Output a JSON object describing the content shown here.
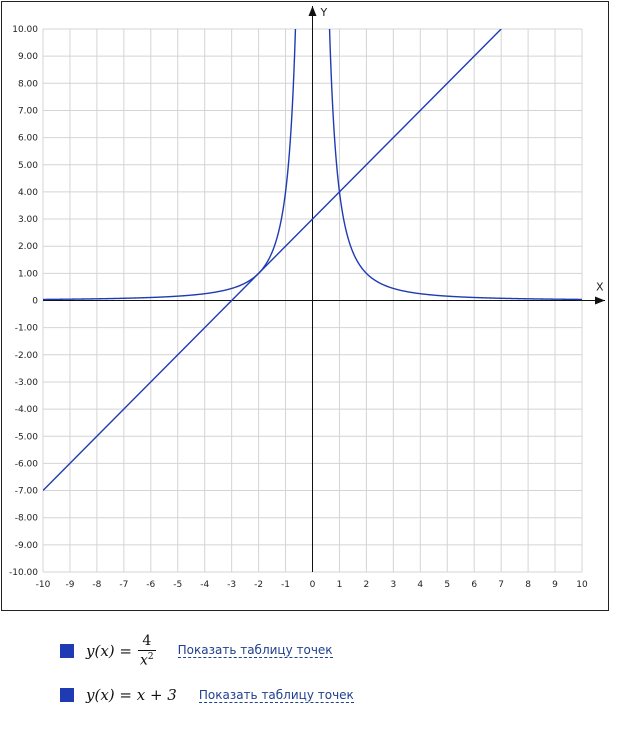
{
  "chart_data": {
    "type": "line",
    "xlabel": "X",
    "ylabel": "Y",
    "xlim": [
      -10,
      10
    ],
    "ylim": [
      -10,
      10
    ],
    "grid": true,
    "x_ticks": [
      "-10",
      "-9",
      "-8",
      "-7",
      "-6",
      "-5",
      "-4",
      "-3",
      "-2",
      "-1",
      "0",
      "1",
      "2",
      "3",
      "4",
      "5",
      "6",
      "7",
      "8",
      "9",
      "10"
    ],
    "y_ticks": [
      "10.00",
      "9.00",
      "8.00",
      "7.00",
      "6.00",
      "5.00",
      "4.00",
      "3.00",
      "2.00",
      "1.00",
      "0",
      "-1.00",
      "-2.00",
      "-3.00",
      "-4.00",
      "-5.00",
      "-6.00",
      "-7.00",
      "-8.00",
      "-9.00",
      "-10.00"
    ],
    "series": [
      {
        "expression": "4/x^2",
        "color": "#1f3bb3"
      },
      {
        "expression": "x+3",
        "color": "#1f3bb3"
      }
    ]
  },
  "legend": [
    {
      "formula_lhs": "y(x) =",
      "numerator": "4",
      "denominator_base": "x",
      "denominator_exp": "2",
      "link_text": "Показать таблицу точек",
      "color": "#1f3bb3"
    },
    {
      "formula_text": "y(x) = x + 3",
      "link_text": "Показать таблицу точек",
      "color": "#1f3bb3"
    }
  ]
}
